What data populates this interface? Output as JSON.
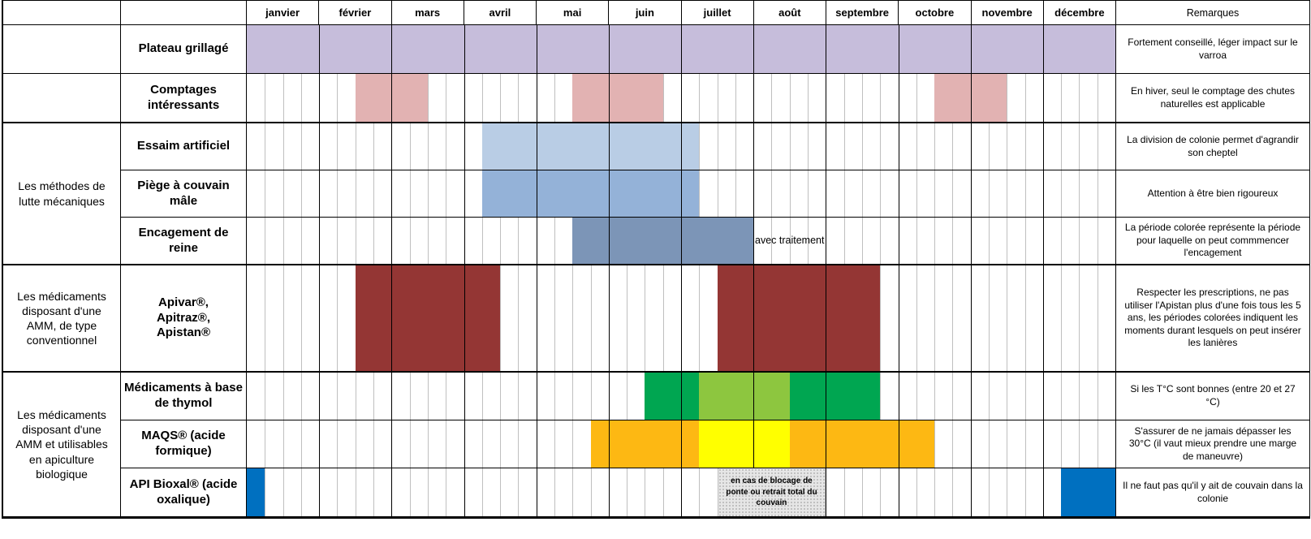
{
  "chart_data": {
    "type": "gantt",
    "title": "",
    "time_axis": "months of the year, 4 week sub-columns per month",
    "weeks_per_month": 4,
    "weeks_total": 48,
    "months": [
      "janvier",
      "février",
      "mars",
      "avril",
      "mai",
      "juin",
      "juillet",
      "août",
      "septembre",
      "octobre",
      "novembre",
      "décembre"
    ],
    "remarks_header": "Remarques",
    "legend_position": "none",
    "grid": "weekly light-gray lines, monthly black lines",
    "colors": {
      "purple": "#c6bddb",
      "pink": "#e2b2b2",
      "light_blue": "#b9cde5",
      "medium_blue": "#94b2d8",
      "slate_blue": "#7c95b7",
      "dark_red": "#943634",
      "green": "#00a651",
      "light_green": "#8dc63f",
      "orange": "#fdb813",
      "yellow": "#ffff00",
      "blue": "#0070c0",
      "note_box_bg": "#e6e6e6"
    },
    "groups": [
      {
        "label": "Les méthodes de lutte mécaniques",
        "row_start": 3,
        "row_end": 5
      },
      {
        "label": "Les médicaments disposant d'une AMM, de type conventionnel",
        "row_start": 6,
        "row_end": 6
      },
      {
        "label": "Les médicaments disposant d'une AMM et utilisables en apiculture biologique",
        "row_start": 7,
        "row_end": 9
      }
    ],
    "rows": [
      {
        "id": "plateau",
        "label": "Plateau grillagé",
        "remark": "Fortement conseillé, léger impact sur le varroa",
        "spans": [
          {
            "start": 0,
            "end": 48,
            "color": "purple"
          }
        ]
      },
      {
        "id": "comptages",
        "label": "Comptages intéressants",
        "remark": "En hiver, seul le comptage des chutes naturelles est applicable",
        "spans": [
          {
            "start": 6,
            "end": 10,
            "color": "pink"
          },
          {
            "start": 18,
            "end": 23,
            "color": "pink"
          },
          {
            "start": 38,
            "end": 42,
            "color": "pink"
          }
        ]
      },
      {
        "id": "essaim",
        "label": "Essaim artificiel",
        "remark": "La division de colonie permet d'agrandir son cheptel",
        "spans": [
          {
            "start": 13,
            "end": 25,
            "color": "light_blue"
          }
        ]
      },
      {
        "id": "piege",
        "label": "Piège à couvain mâle",
        "remark": "Attention à être bien rigoureux",
        "spans": [
          {
            "start": 13,
            "end": 25,
            "color": "medium_blue"
          }
        ]
      },
      {
        "id": "encagement",
        "label": "Encagement de reine",
        "remark": "La période colorée représente la période pour laquelle on peut commmencer l'encagement",
        "spans": [
          {
            "start": 18,
            "end": 28,
            "color": "slate_blue"
          }
        ],
        "notes": [
          {
            "start": 28,
            "end": 32,
            "text": "avec traitement",
            "boxed": false
          }
        ]
      },
      {
        "id": "apivar",
        "label": "Apivar®,\nApitraz®,\nApistan®",
        "remark": "Respecter les prescriptions, ne pas utiliser l'Apistan plus d'une fois tous les 5 ans, les périodes colorées indiquent les moments durant lesquels on peut insérer les lanières",
        "spans": [
          {
            "start": 6,
            "end": 14,
            "color": "dark_red"
          },
          {
            "start": 26,
            "end": 35,
            "color": "dark_red"
          }
        ]
      },
      {
        "id": "thymol",
        "label": "Médicaments à base de thymol",
        "remark": "Si les T°C sont bonnes (entre 20 et 27 °C)",
        "spans": [
          {
            "start": 22,
            "end": 25,
            "color": "green"
          },
          {
            "start": 25,
            "end": 30,
            "color": "light_green"
          },
          {
            "start": 30,
            "end": 35,
            "color": "green"
          }
        ]
      },
      {
        "id": "maqs",
        "label": "MAQS® (acide formique)",
        "remark": "S'assurer de ne jamais dépasser les 30°C (il vaut mieux prendre une marge de maneuvre)",
        "spans": [
          {
            "start": 19,
            "end": 25,
            "color": "orange"
          },
          {
            "start": 25,
            "end": 30,
            "color": "yellow"
          },
          {
            "start": 30,
            "end": 38,
            "color": "orange"
          }
        ]
      },
      {
        "id": "bioxal",
        "label": "API Bioxal® (acide oxalique)",
        "remark": "Il ne faut pas qu'il y ait de couvain dans la colonie",
        "spans": [
          {
            "start": 0,
            "end": 1,
            "color": "blue"
          },
          {
            "start": 45,
            "end": 48,
            "color": "blue"
          }
        ],
        "notes": [
          {
            "start": 26,
            "end": 32,
            "text": "en cas de blocage de ponte ou retrait total du couvain",
            "boxed": true
          }
        ]
      }
    ]
  }
}
